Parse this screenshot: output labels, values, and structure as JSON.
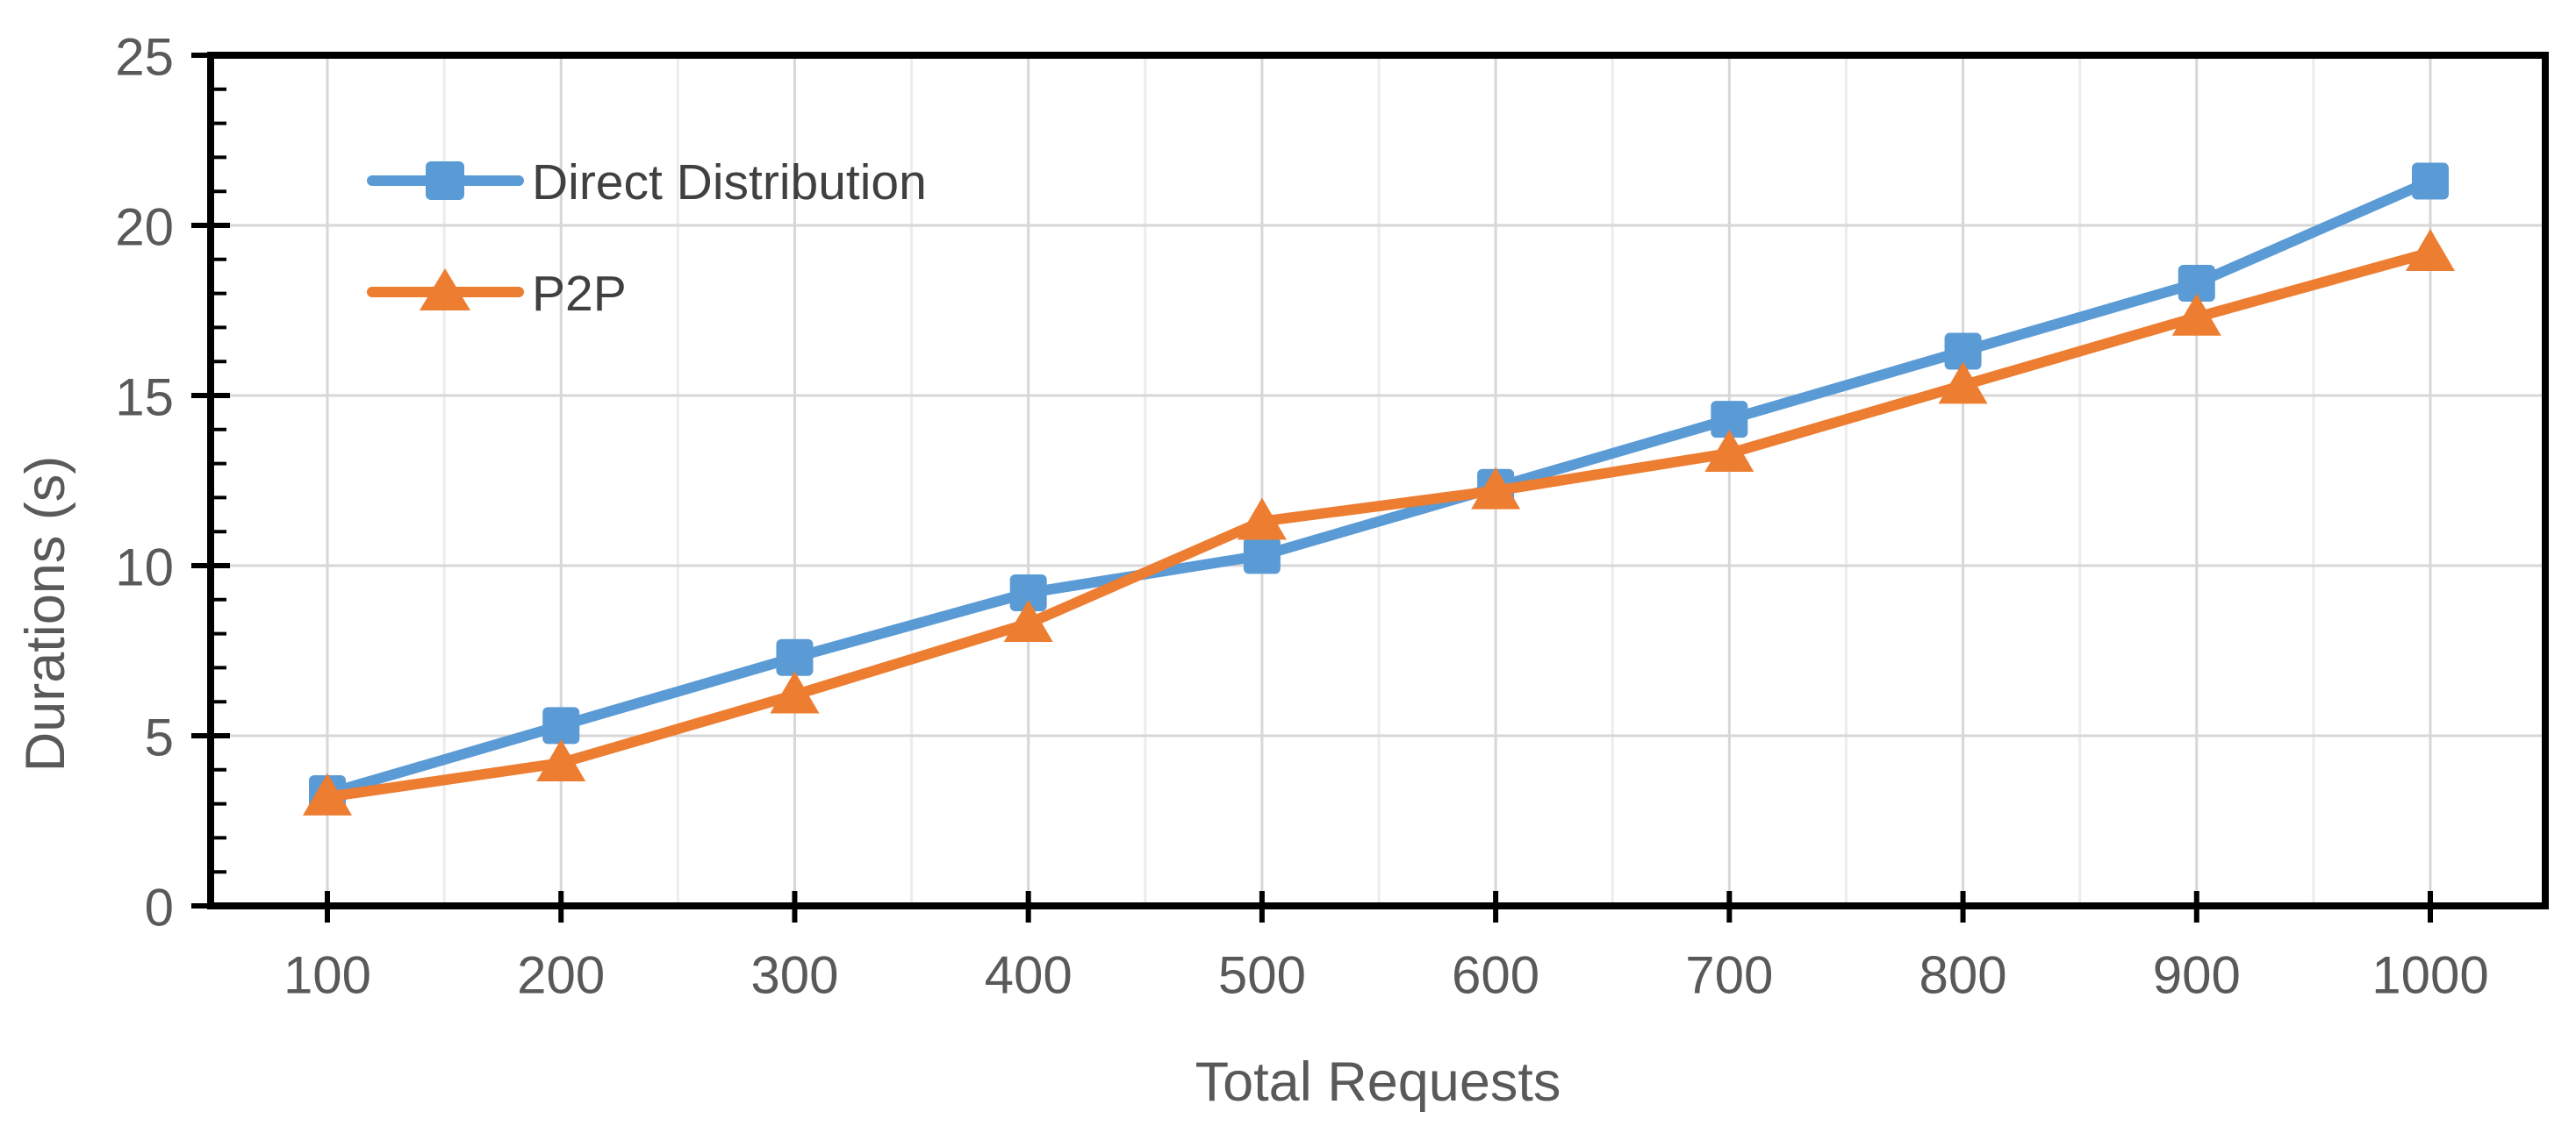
{
  "chart_data": {
    "type": "line",
    "title": "",
    "xlabel": "Total Requests",
    "ylabel": "Durations (s)",
    "x": [
      100,
      200,
      300,
      400,
      500,
      600,
      700,
      800,
      900,
      1000
    ],
    "x_tick_labels": [
      "100",
      "200",
      "300",
      "400",
      "500",
      "600",
      "700",
      "800",
      "900",
      "1000"
    ],
    "ylim": [
      0,
      25
    ],
    "yticks": [
      0,
      5,
      10,
      15,
      20,
      25
    ],
    "y_tick_labels": [
      "0",
      "5",
      "10",
      "15",
      "20",
      "25"
    ],
    "grid": true,
    "minor_x_grid_step": 50,
    "legend_position": "inside-top-left",
    "series": [
      {
        "name": "Direct Distribution",
        "marker": "square",
        "color": "#5B9BD5",
        "values": [
          3.3,
          5.3,
          7.3,
          9.2,
          10.3,
          12.3,
          14.3,
          16.3,
          18.3,
          21.3
        ]
      },
      {
        "name": "P2P",
        "marker": "triangle",
        "color": "#ED7D31",
        "values": [
          3.2,
          4.2,
          6.2,
          8.3,
          11.3,
          12.2,
          13.3,
          15.3,
          17.3,
          19.2
        ]
      }
    ]
  },
  "colors": {
    "background": "#FFFFFF",
    "axis": "#000000",
    "grid_major": "#D7D7D7",
    "grid_minor": "#ECECEC",
    "tick_label": "#595959",
    "axis_title": "#595959",
    "legend_text": "#404040"
  }
}
